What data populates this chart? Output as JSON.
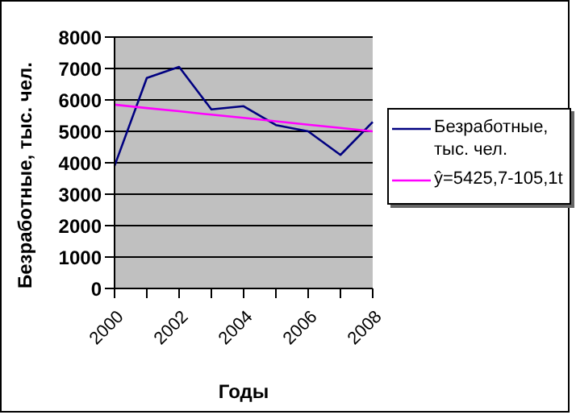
{
  "chart_data": {
    "type": "line",
    "xlabel": "Годы",
    "ylabel": "Безработные, тыс. чел.",
    "categories": [
      "2000",
      null,
      "2002",
      null,
      "2004",
      null,
      "2006",
      null,
      "2008"
    ],
    "series": [
      {
        "name": "Безработные, тыс. чел.",
        "color": "#000080",
        "values": [
          3900,
          6700,
          7050,
          5700,
          5800,
          5200,
          5000,
          4250,
          5300
        ]
      },
      {
        "name": "ŷ=5425,7-105,1t",
        "color": "#ff00ff",
        "values": [
          5850,
          5740,
          5640,
          5530,
          5430,
          5320,
          5210,
          5110,
          5000
        ]
      }
    ],
    "ylim": [
      0,
      8000
    ],
    "yticks": [
      0,
      1000,
      2000,
      3000,
      4000,
      5000,
      6000,
      7000,
      8000
    ],
    "grid": "y",
    "legend": "right",
    "marker": "none",
    "line_style": "solid"
  }
}
